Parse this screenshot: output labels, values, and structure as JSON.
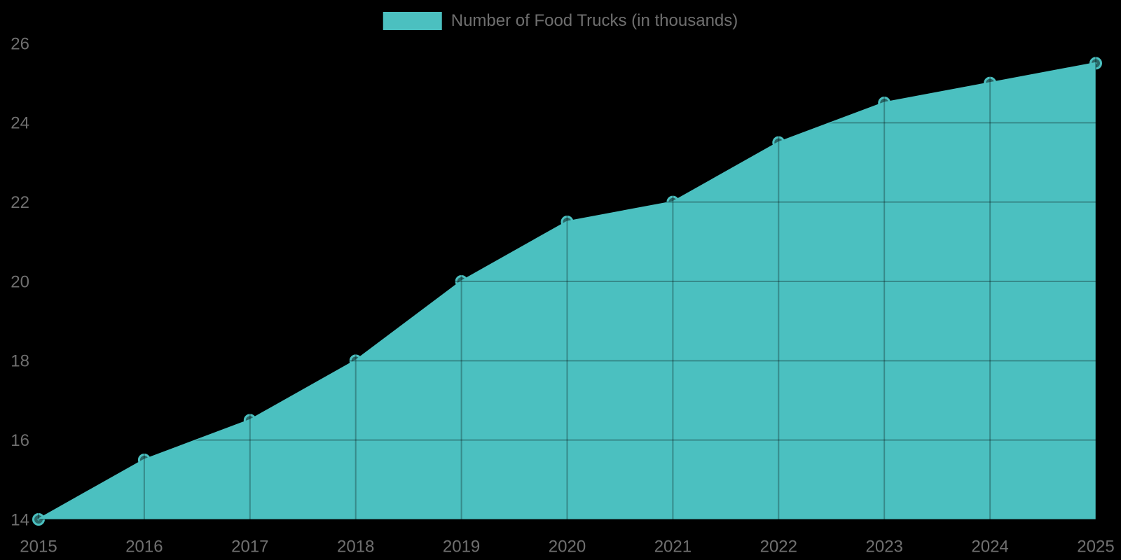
{
  "page": {
    "background_color": "#000000"
  },
  "legend": {
    "label": "Number of Food Trucks (in thousands)",
    "swatch_color": "#4bc0c0",
    "position": "top"
  },
  "chart_data": {
    "type": "area",
    "title": "",
    "xlabel": "",
    "ylabel": "",
    "categories": [
      "2015",
      "2016",
      "2017",
      "2018",
      "2019",
      "2020",
      "2021",
      "2022",
      "2023",
      "2024",
      "2025"
    ],
    "series": [
      {
        "name": "Number of Food Trucks (in thousands)",
        "values": [
          14,
          15.5,
          16.5,
          18,
          20,
          21.5,
          22,
          23.5,
          24.5,
          25,
          25.5
        ]
      }
    ],
    "ylim": [
      14,
      26
    ],
    "yticks": [
      14,
      16,
      18,
      20,
      22,
      24,
      26
    ],
    "grid": true,
    "legend_position": "top",
    "colors": {
      "fill": "#4bc0c0",
      "line": "#4bc0c0",
      "marker_border": "#4bc0c0",
      "marker_fill": "rgba(75,192,192,0.55)",
      "gridline_over_fill": "rgba(0,0,0,0.28)",
      "tick_text": "#6f6f6f",
      "background": "#000000"
    }
  }
}
